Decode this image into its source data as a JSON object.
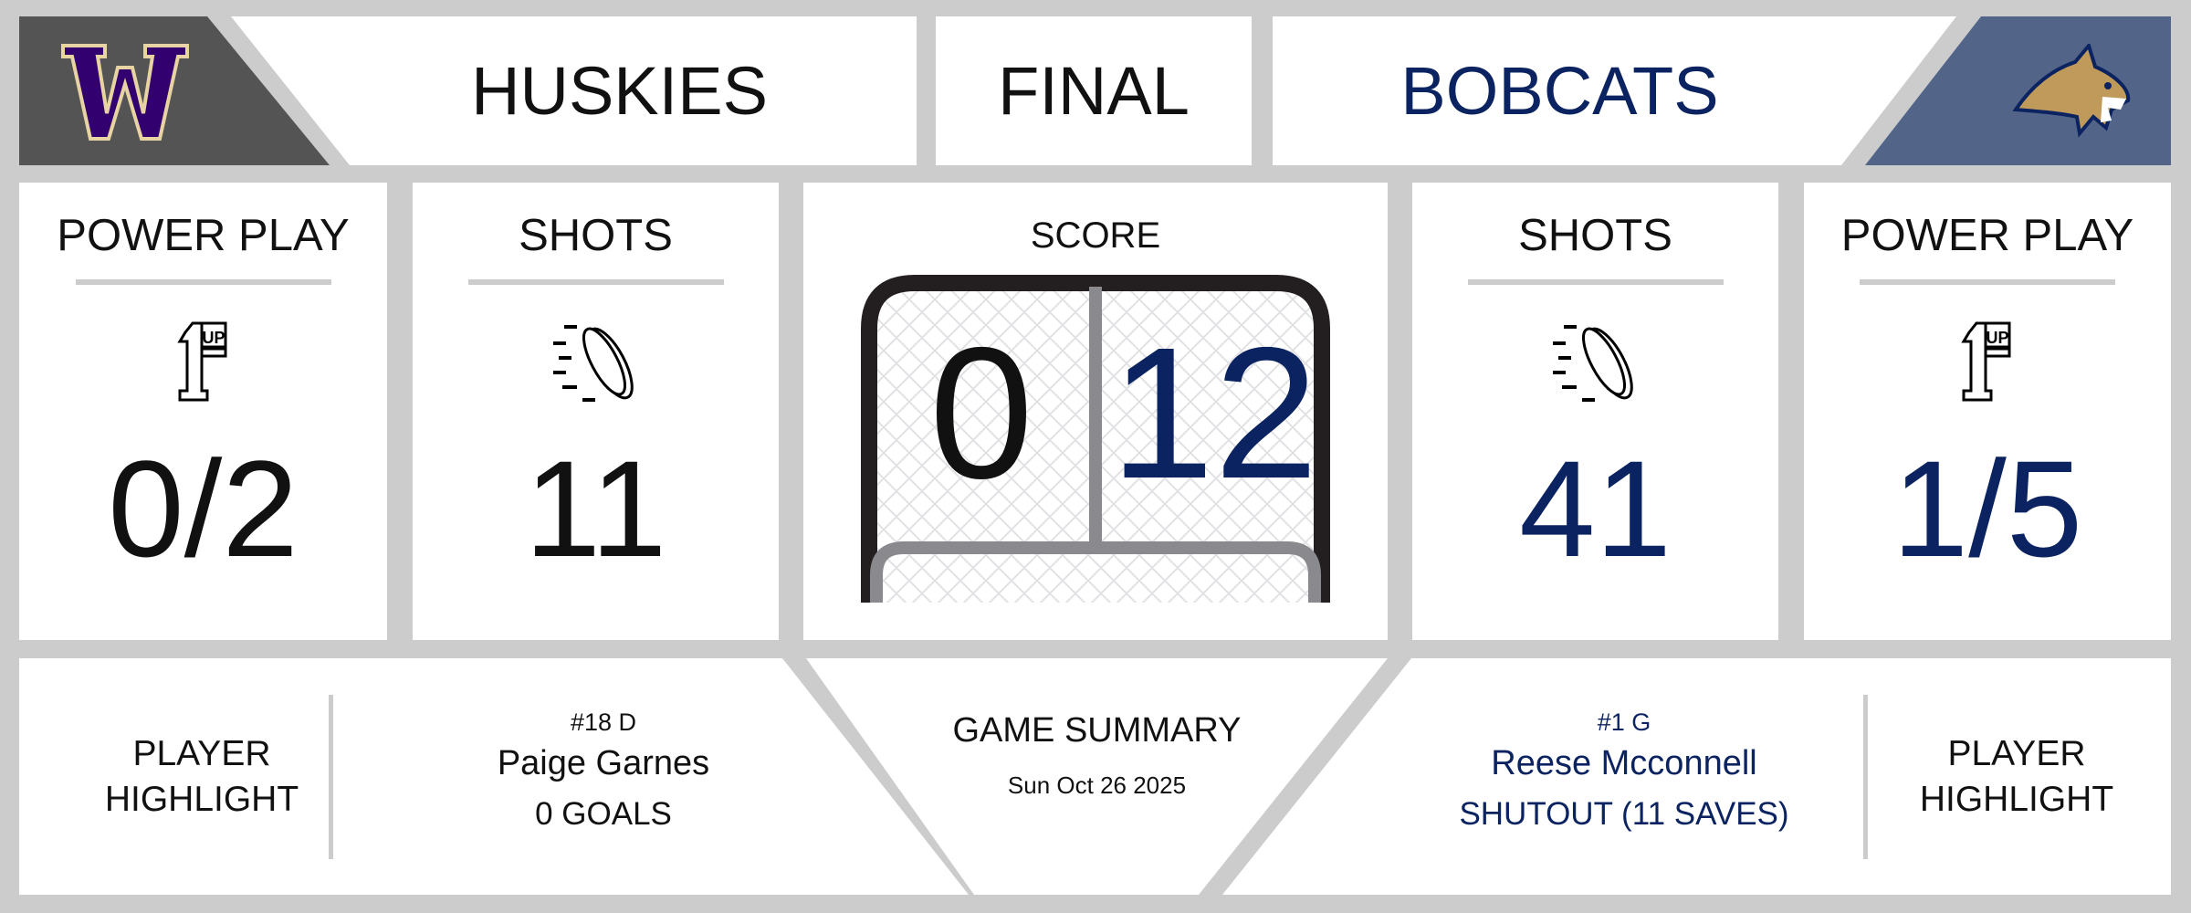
{
  "header": {
    "home_team": "HUSKIES",
    "status": "FINAL",
    "away_team": "BOBCATS",
    "home_logo": "washington-w-logo",
    "away_logo": "bobcat-head-logo"
  },
  "home": {
    "power_play": {
      "label": "POWER PLAY",
      "value": "0/2",
      "icon": "one-up-icon"
    },
    "shots": {
      "label": "SHOTS",
      "value": "11",
      "icon": "puck-icon"
    }
  },
  "away": {
    "power_play": {
      "label": "POWER PLAY",
      "value": "1/5",
      "icon": "one-up-icon"
    },
    "shots": {
      "label": "SHOTS",
      "value": "41",
      "icon": "puck-icon"
    }
  },
  "score": {
    "label": "SCORE",
    "home": "0",
    "away": "12",
    "icon": "hockey-net-icon"
  },
  "summary": {
    "title": "GAME SUMMARY",
    "date": "Sun Oct 26 2025"
  },
  "home_highlight": {
    "label_line1": "PLAYER",
    "label_line2": "HIGHLIGHT",
    "number": "#18 D",
    "name": "Paige Garnes",
    "stat": "0 GOALS"
  },
  "away_highlight": {
    "label_line1": "PLAYER",
    "label_line2": "HIGHLIGHT",
    "number": "#1 G",
    "name": "Reese Mcconnell",
    "stat": "SHUTOUT (11 SAVES)"
  },
  "colors": {
    "background": "#cccccc",
    "home_dark": "#545454",
    "away_blue": "#526488",
    "away_text": "#0b2461",
    "home_purple": "#33006f",
    "home_gold": "#e8d3a2",
    "bobcat_gold": "#c09a5b"
  }
}
